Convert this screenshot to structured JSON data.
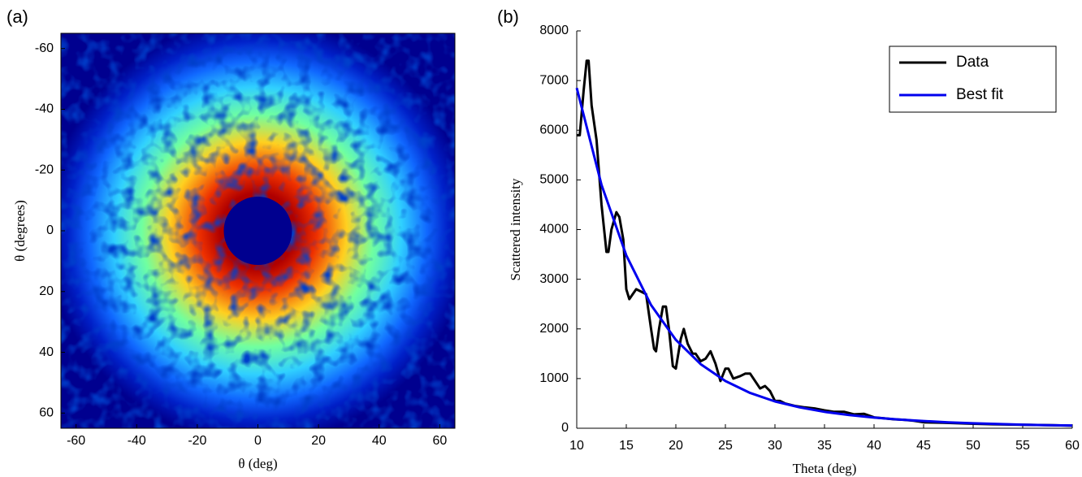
{
  "chart_data": [
    {
      "type": "image",
      "panel_label": "(a)",
      "x_label": "θ (deg)",
      "y_label": "θ (degrees)",
      "xlim": [
        -65,
        65
      ],
      "ylim": [
        65,
        -65
      ],
      "y_inverted": true,
      "xticks": [
        -60,
        -40,
        -20,
        0,
        20,
        40,
        60
      ],
      "yticks": [
        -60,
        -40,
        -20,
        0,
        20,
        40,
        60
      ]
    },
    {
      "type": "line",
      "panel_label": "(b)",
      "x_label": "Theta (deg)",
      "y_label": "Scattered intensity",
      "xlim": [
        10,
        60
      ],
      "ylim": [
        0,
        8000
      ],
      "xticks": [
        10,
        15,
        20,
        25,
        30,
        35,
        40,
        45,
        50,
        55,
        60
      ],
      "yticks": [
        0,
        1000,
        2000,
        3000,
        4000,
        5000,
        6000,
        7000,
        8000
      ],
      "legend": "upper right",
      "series": [
        {
          "name": "Data",
          "color": "#000000",
          "x": [
            10,
            10.3,
            10.7,
            11,
            11.2,
            11.5,
            12,
            12.5,
            13,
            13.2,
            13.5,
            14,
            14.3,
            14.7,
            15,
            15.3,
            16,
            16.5,
            17,
            17.5,
            17.8,
            18,
            18.3,
            18.7,
            19,
            19.3,
            19.7,
            20,
            20.5,
            20.8,
            21.2,
            21.7,
            22,
            22.5,
            23,
            23.5,
            24,
            24.5,
            25,
            25.3,
            25.8,
            26.5,
            27,
            27.5,
            28,
            28.5,
            29,
            29.5,
            30,
            30.5,
            31,
            32,
            33,
            34,
            35,
            36,
            37,
            38,
            39,
            40,
            41,
            42,
            43,
            44,
            45,
            47,
            50,
            52,
            55,
            58,
            60
          ],
          "values": [
            5900,
            5900,
            6800,
            7400,
            7400,
            6500,
            5800,
            4500,
            3550,
            3550,
            4000,
            4350,
            4250,
            3800,
            2800,
            2600,
            2800,
            2750,
            2700,
            2000,
            1600,
            1550,
            2000,
            2450,
            2450,
            2000,
            1250,
            1200,
            1800,
            2000,
            1700,
            1500,
            1500,
            1350,
            1400,
            1550,
            1300,
            950,
            1200,
            1200,
            1000,
            1050,
            1100,
            1100,
            950,
            800,
            850,
            750,
            550,
            550,
            500,
            450,
            420,
            400,
            360,
            330,
            330,
            280,
            290,
            220,
            200,
            180,
            170,
            150,
            120,
            110,
            90,
            80,
            70,
            60,
            50
          ]
        },
        {
          "name": "Best fit",
          "color": "#0000ee",
          "x": [
            10,
            12.5,
            15,
            17.5,
            20,
            22.5,
            25,
            27.5,
            30,
            32.5,
            35,
            37.5,
            40,
            42.5,
            45,
            47.5,
            50,
            52.5,
            55,
            57.5,
            60
          ],
          "values": [
            6850,
            4900,
            3480,
            2480,
            1780,
            1290,
            950,
            710,
            540,
            420,
            330,
            265,
            215,
            175,
            145,
            120,
            100,
            85,
            72,
            62,
            55
          ]
        }
      ]
    }
  ]
}
